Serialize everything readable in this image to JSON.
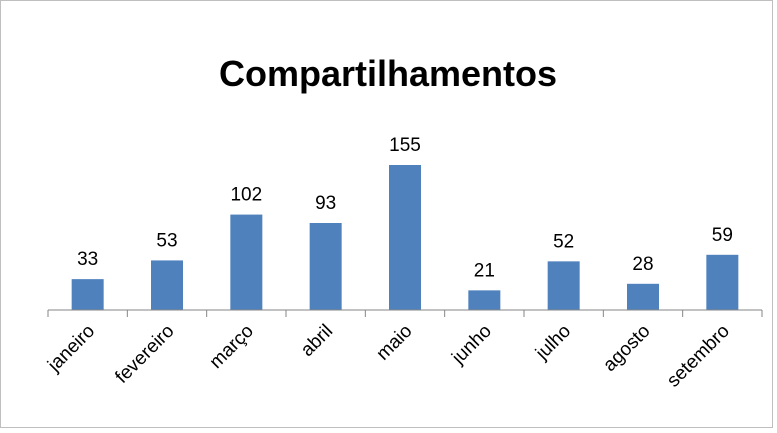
{
  "chart_data": {
    "type": "bar",
    "title": "Compartilhamentos",
    "categories": [
      "janeiro",
      "fevereiro",
      "março",
      "abril",
      "maio",
      "junho",
      "julho",
      "agosto",
      "setembro"
    ],
    "values": [
      33,
      53,
      102,
      93,
      155,
      21,
      52,
      28,
      59
    ],
    "color": "#4f81bd"
  }
}
